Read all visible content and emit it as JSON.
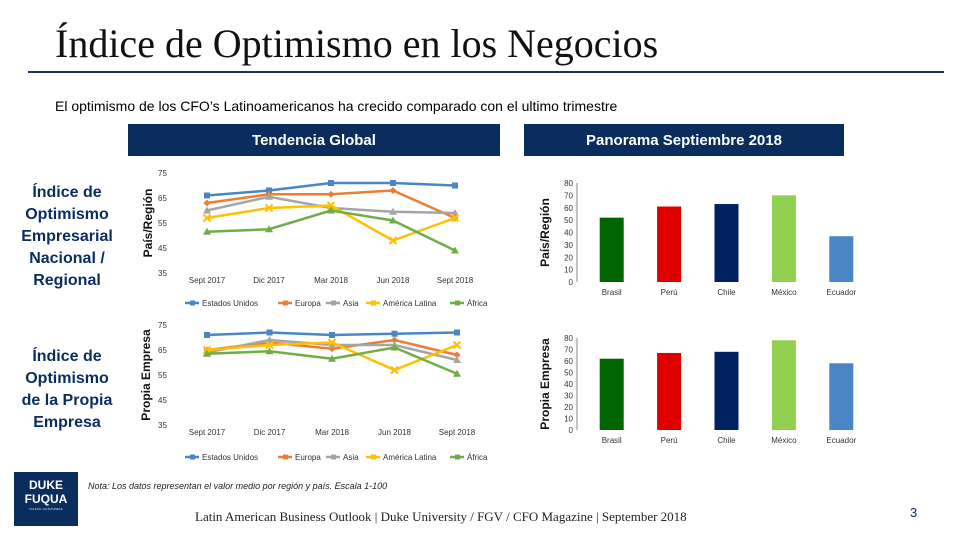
{
  "title": "Índice de Optimismo en los Negocios",
  "subtitle": "El optimismo de los CFO’s Latinoamericanos ha crecido comparado con el ultimo trimestre",
  "headers": {
    "left": "Tendencia Global",
    "right": "Panorama Septiembre 2018"
  },
  "side_labels": {
    "top": [
      "Índice de",
      "Optimismo",
      "Empresarial",
      "Nacional /",
      "Regional"
    ],
    "bottom": [
      "Índice de",
      "Optimismo",
      "de la Propia",
      "Empresa"
    ]
  },
  "note": "Nota: Los datos representan el valor medio por región y país. Escala 1-100",
  "footer": "Latin American Business Outlook | Duke University / FGV / CFO Magazine | September 2018",
  "page_number": "3",
  "logo": {
    "line1": "DUKE",
    "line2": "FUQUA",
    "line3": "SCHOOL OF BUSINESS"
  },
  "colors": {
    "Estados Unidos": "#4a86c5",
    "Europa": "#ed7d31",
    "Asia": "#a5a5a5",
    "América Latina": "#ffc000",
    "África": "#70ad47",
    "bar_dark": "#006400",
    "bar_red": "#e00000",
    "bar_navy": "#002060",
    "bar_lime": "#92d050",
    "bar_blue": "#4a86c5",
    "header_bg": "#0a2d5e"
  },
  "chart_data": [
    {
      "id": "global-regional",
      "type": "line",
      "ylabel": "País/Región",
      "ylim": [
        35,
        75
      ],
      "yticks": [
        35,
        45,
        55,
        65,
        75
      ],
      "categories": [
        "Sept 2017",
        "Dic 2017",
        "Mar 2018",
        "Jun 2018",
        "Sept 2018"
      ],
      "series": [
        {
          "name": "Estados Unidos",
          "values": [
            66,
            68,
            71,
            71,
            70
          ]
        },
        {
          "name": "Europa",
          "values": [
            63,
            66.5,
            66.5,
            68,
            57
          ]
        },
        {
          "name": "Asia",
          "values": [
            60,
            65.5,
            61,
            59.5,
            59
          ]
        },
        {
          "name": "América Latina",
          "values": [
            57,
            61,
            62,
            48,
            57
          ]
        },
        {
          "name": "África",
          "values": [
            51.5,
            52.5,
            60,
            56,
            44
          ]
        }
      ]
    },
    {
      "id": "global-empresa",
      "type": "line",
      "ylabel": "Propia Empresa",
      "ylim": [
        35,
        75
      ],
      "yticks": [
        35,
        45,
        55,
        65,
        75
      ],
      "categories": [
        "Sept 2017",
        "Dic 2017",
        "Mar 2018",
        "Jun 2018",
        "Sept 2018"
      ],
      "series": [
        {
          "name": "Estados Unidos",
          "values": [
            71,
            72,
            71,
            71.5,
            72
          ]
        },
        {
          "name": "Europa",
          "values": [
            65,
            68,
            65.5,
            69,
            63
          ]
        },
        {
          "name": "Asia",
          "values": [
            64,
            69,
            67,
            67,
            61
          ]
        },
        {
          "name": "América Latina",
          "values": [
            65,
            67,
            68,
            57,
            67
          ]
        },
        {
          "name": "África",
          "values": [
            63.5,
            64.5,
            61.5,
            66,
            55.5
          ]
        }
      ]
    },
    {
      "id": "panorama-regional",
      "type": "bar",
      "ylabel": "País/Región",
      "ylim": [
        0,
        80
      ],
      "yticks": [
        0,
        10,
        20,
        30,
        40,
        50,
        60,
        70,
        80
      ],
      "categories": [
        "Brasil",
        "Perú",
        "Chile",
        "México",
        "Ecuador"
      ],
      "values": [
        52,
        61,
        63,
        70,
        37
      ],
      "bar_colors": [
        "#006400",
        "#e00000",
        "#002060",
        "#92d050",
        "#4a86c5"
      ]
    },
    {
      "id": "panorama-empresa",
      "type": "bar",
      "ylabel": "Propia Empresa",
      "ylim": [
        0,
        80
      ],
      "yticks": [
        0,
        10,
        20,
        30,
        40,
        50,
        60,
        70,
        80
      ],
      "categories": [
        "Brasil",
        "Perú",
        "Chile",
        "México",
        "Ecuador"
      ],
      "values": [
        62,
        67,
        68,
        78,
        58
      ],
      "bar_colors": [
        "#006400",
        "#e00000",
        "#002060",
        "#92d050",
        "#4a86c5"
      ]
    }
  ]
}
